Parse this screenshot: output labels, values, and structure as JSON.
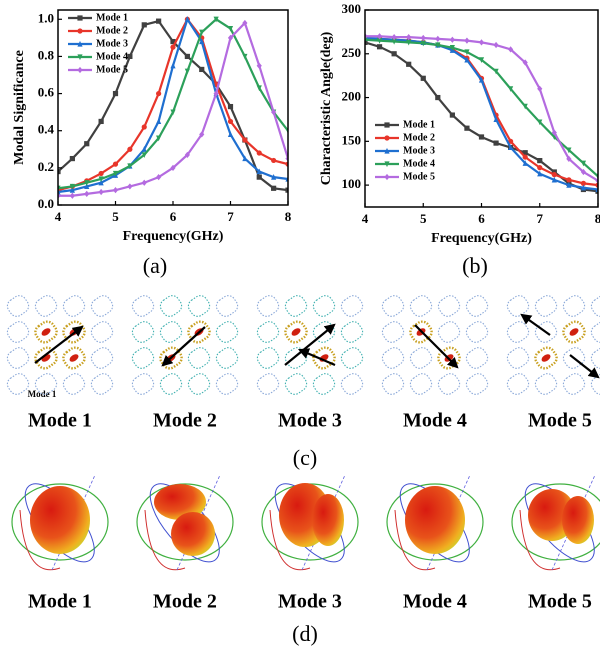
{
  "chart_data": [
    {
      "type": "line",
      "ylabel": "Modal Significance",
      "xlabel": "Frequency(GHz)",
      "x": [
        4,
        4.25,
        4.5,
        4.75,
        5,
        5.25,
        5.5,
        5.75,
        6,
        6.25,
        6.5,
        6.75,
        7,
        7.25,
        7.5,
        7.75,
        8
      ],
      "xlim": [
        4,
        8
      ],
      "xticks": [
        4,
        5,
        6,
        7,
        8
      ],
      "ylim": [
        0,
        1.05
      ],
      "yticks": [
        {
          "value": 0,
          "label": "0.0"
        },
        0.2,
        0.4,
        0.6,
        0.8,
        {
          "value": 1,
          "label": "1.0"
        }
      ],
      "legend": "upper left",
      "series": [
        {
          "name": "Mode 1",
          "color": "#404040",
          "values": [
            0.18,
            0.25,
            0.33,
            0.45,
            0.6,
            0.8,
            0.97,
            0.99,
            0.88,
            0.8,
            0.73,
            0.65,
            0.53,
            0.35,
            0.15,
            0.09,
            0.08
          ]
        },
        {
          "name": "Mode 2",
          "color": "#e8352a",
          "values": [
            0.08,
            0.1,
            0.13,
            0.17,
            0.22,
            0.3,
            0.42,
            0.6,
            0.85,
            1.0,
            0.9,
            0.65,
            0.45,
            0.35,
            0.28,
            0.24,
            0.22
          ]
        },
        {
          "name": "Mode 3",
          "color": "#1f6fd0",
          "values": [
            0.07,
            0.08,
            0.1,
            0.12,
            0.16,
            0.21,
            0.3,
            0.45,
            0.75,
            1.0,
            0.88,
            0.6,
            0.38,
            0.25,
            0.18,
            0.15,
            0.14
          ]
        },
        {
          "name": "Mode 4",
          "color": "#2ca05a",
          "values": [
            0.09,
            0.1,
            0.12,
            0.14,
            0.17,
            0.21,
            0.27,
            0.36,
            0.5,
            0.72,
            0.93,
            1.0,
            0.95,
            0.8,
            0.63,
            0.5,
            0.4
          ]
        },
        {
          "name": "Mode 5",
          "color": "#b46be0",
          "values": [
            0.05,
            0.05,
            0.06,
            0.07,
            0.08,
            0.1,
            0.12,
            0.15,
            0.2,
            0.27,
            0.38,
            0.6,
            0.9,
            0.98,
            0.75,
            0.5,
            0.25
          ]
        }
      ]
    },
    {
      "type": "line",
      "ylabel": "Characteristic Angle(deg)",
      "xlabel": "Frequency(GHz)",
      "x": [
        4,
        4.25,
        4.5,
        4.75,
        5,
        5.25,
        5.5,
        5.75,
        6,
        6.25,
        6.5,
        6.75,
        7,
        7.25,
        7.5,
        7.75,
        8
      ],
      "xlim": [
        4,
        8
      ],
      "xticks": [
        4,
        5,
        6,
        7,
        8
      ],
      "ylim": [
        75,
        300
      ],
      "yticks": [
        100,
        150,
        200,
        250,
        300
      ],
      "legend": "lower left",
      "series": [
        {
          "name": "Mode 1",
          "color": "#404040",
          "values": [
            263,
            258,
            250,
            238,
            222,
            200,
            180,
            165,
            155,
            148,
            143,
            137,
            128,
            115,
            102,
            95,
            93
          ]
        },
        {
          "name": "Mode 2",
          "color": "#e8352a",
          "values": [
            268,
            267,
            266,
            265,
            263,
            260,
            255,
            245,
            222,
            180,
            150,
            132,
            120,
            112,
            106,
            102,
            100
          ]
        },
        {
          "name": "Mode 3",
          "color": "#1f6fd0",
          "values": [
            268,
            267,
            266,
            265,
            263,
            260,
            254,
            243,
            220,
            175,
            143,
            125,
            113,
            106,
            100,
            97,
            95
          ]
        },
        {
          "name": "Mode 4",
          "color": "#2ca05a",
          "values": [
            266,
            265,
            264,
            263,
            262,
            260,
            257,
            252,
            243,
            230,
            210,
            190,
            172,
            155,
            140,
            125,
            110
          ]
        },
        {
          "name": "Mode 5",
          "color": "#b46be0",
          "values": [
            270,
            270,
            269,
            269,
            268,
            267,
            266,
            265,
            263,
            260,
            255,
            240,
            210,
            160,
            130,
            115,
            105
          ]
        }
      ]
    }
  ],
  "captions": [
    "(a)",
    "(b)",
    "(c)",
    "(d)"
  ],
  "current_modes": {
    "inset_label": "Mode 1",
    "labels": [
      "Mode 1",
      "Mode 2",
      "Mode 3",
      "Mode 4",
      "Mode 5"
    ]
  },
  "pattern_modes": {
    "labels": [
      "Mode 1",
      "Mode 2",
      "Mode 3",
      "Mode 4",
      "Mode 5"
    ]
  }
}
